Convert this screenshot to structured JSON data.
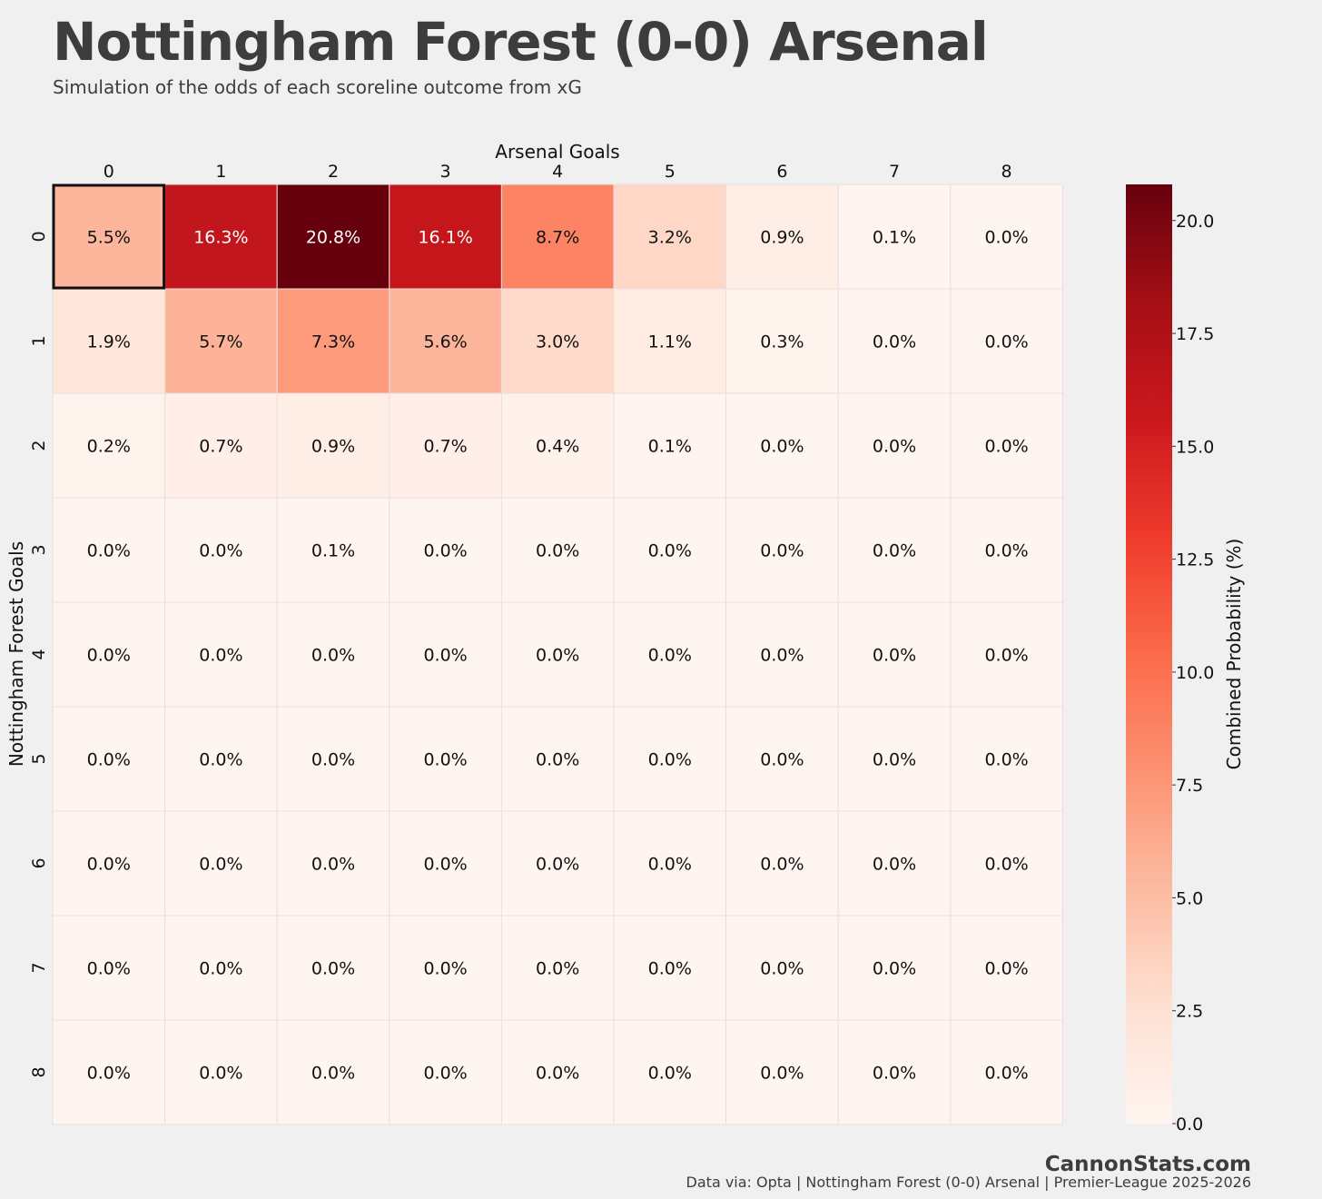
{
  "header": {
    "title": "Nottingham Forest (0-0) Arsenal",
    "subtitle": "Simulation of the odds of each scoreline outcome from xG"
  },
  "footer": {
    "brand": "CannonStats.com",
    "source": "Data via: Opta | Nottingham Forest (0-0) Arsenal | Premier-League 2025-2026"
  },
  "colors": {
    "background": "#f0f0f0",
    "text": "#3d3d3d",
    "scale": [
      "#fff5f0",
      "#fee0d2",
      "#fcbba1",
      "#fc9272",
      "#fb6a4a",
      "#ef3b2c",
      "#cb181d",
      "#a50f15",
      "#67000d"
    ]
  },
  "chart_data": {
    "type": "heatmap",
    "xlabel": "Arsenal Goals",
    "ylabel": "Nottingham Forest Goals",
    "colorbar_label": "Combined Probability (%)",
    "x_categories": [
      "0",
      "1",
      "2",
      "3",
      "4",
      "5",
      "6",
      "7",
      "8"
    ],
    "y_categories": [
      "0",
      "1",
      "2",
      "3",
      "4",
      "5",
      "6",
      "7",
      "8"
    ],
    "values": [
      [
        5.5,
        16.3,
        20.8,
        16.1,
        8.7,
        3.2,
        0.9,
        0.1,
        0.0
      ],
      [
        1.9,
        5.7,
        7.3,
        5.6,
        3.0,
        1.1,
        0.3,
        0.0,
        0.0
      ],
      [
        0.2,
        0.7,
        0.9,
        0.7,
        0.4,
        0.1,
        0.0,
        0.0,
        0.0
      ],
      [
        0.0,
        0.0,
        0.1,
        0.0,
        0.0,
        0.0,
        0.0,
        0.0,
        0.0
      ],
      [
        0.0,
        0.0,
        0.0,
        0.0,
        0.0,
        0.0,
        0.0,
        0.0,
        0.0
      ],
      [
        0.0,
        0.0,
        0.0,
        0.0,
        0.0,
        0.0,
        0.0,
        0.0,
        0.0
      ],
      [
        0.0,
        0.0,
        0.0,
        0.0,
        0.0,
        0.0,
        0.0,
        0.0,
        0.0
      ],
      [
        0.0,
        0.0,
        0.0,
        0.0,
        0.0,
        0.0,
        0.0,
        0.0,
        0.0
      ],
      [
        0.0,
        0.0,
        0.0,
        0.0,
        0.0,
        0.0,
        0.0,
        0.0,
        0.0
      ]
    ],
    "cell_labels": [
      [
        "5.5%",
        "16.3%",
        "20.8%",
        "16.1%",
        "8.7%",
        "3.2%",
        "0.9%",
        "0.1%",
        "0.0%"
      ],
      [
        "1.9%",
        "5.7%",
        "7.3%",
        "5.6%",
        "3.0%",
        "1.1%",
        "0.3%",
        "0.0%",
        "0.0%"
      ],
      [
        "0.2%",
        "0.7%",
        "0.9%",
        "0.7%",
        "0.4%",
        "0.1%",
        "0.0%",
        "0.0%",
        "0.0%"
      ],
      [
        "0.0%",
        "0.0%",
        "0.1%",
        "0.0%",
        "0.0%",
        "0.0%",
        "0.0%",
        "0.0%",
        "0.0%"
      ],
      [
        "0.0%",
        "0.0%",
        "0.0%",
        "0.0%",
        "0.0%",
        "0.0%",
        "0.0%",
        "0.0%",
        "0.0%"
      ],
      [
        "0.0%",
        "0.0%",
        "0.0%",
        "0.0%",
        "0.0%",
        "0.0%",
        "0.0%",
        "0.0%",
        "0.0%"
      ],
      [
        "0.0%",
        "0.0%",
        "0.0%",
        "0.0%",
        "0.0%",
        "0.0%",
        "0.0%",
        "0.0%",
        "0.0%"
      ],
      [
        "0.0%",
        "0.0%",
        "0.0%",
        "0.0%",
        "0.0%",
        "0.0%",
        "0.0%",
        "0.0%",
        "0.0%"
      ],
      [
        "0.0%",
        "0.0%",
        "0.0%",
        "0.0%",
        "0.0%",
        "0.0%",
        "0.0%",
        "0.0%",
        "0.0%"
      ]
    ],
    "highlight_cell": {
      "row": 0,
      "col": 0
    },
    "color_range": [
      0,
      20.8
    ],
    "colorbar_ticks": [
      "0.0",
      "2.5",
      "5.0",
      "7.5",
      "10.0",
      "12.5",
      "15.0",
      "17.5",
      "20.0"
    ],
    "colorbar_tick_values": [
      0,
      2.5,
      5,
      7.5,
      10,
      12.5,
      15,
      17.5,
      20
    ]
  }
}
